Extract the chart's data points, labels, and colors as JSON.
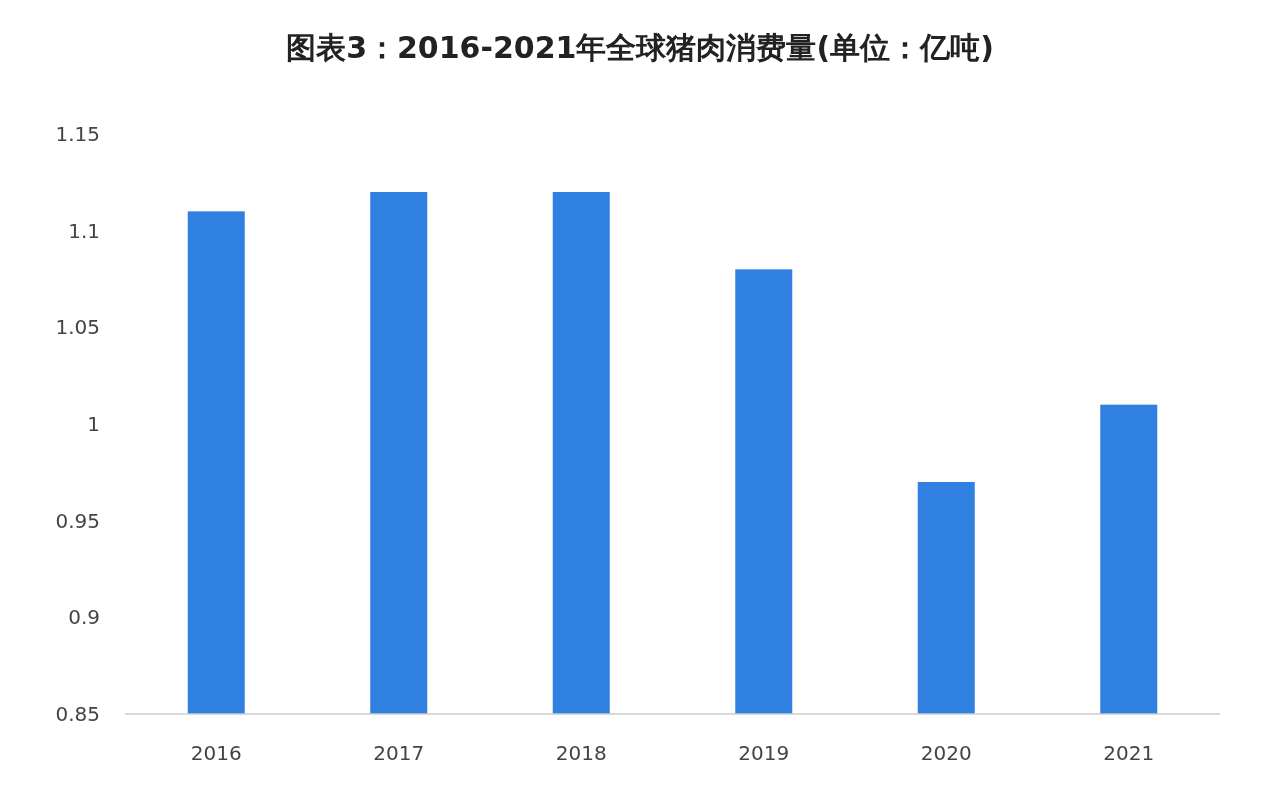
{
  "chart_data": {
    "type": "bar",
    "title": "图表3：2016-2021年全球猪肉消费量(单位：亿吨)",
    "categories": [
      "2016",
      "2017",
      "2018",
      "2019",
      "2020",
      "2021"
    ],
    "values": [
      1.11,
      1.12,
      1.12,
      1.08,
      0.97,
      1.01
    ],
    "color": "#2f80e0",
    "ylim": [
      0.85,
      1.15
    ],
    "yticks": [
      0.85,
      0.9,
      0.95,
      1,
      1.05,
      1.1,
      1.15
    ]
  }
}
